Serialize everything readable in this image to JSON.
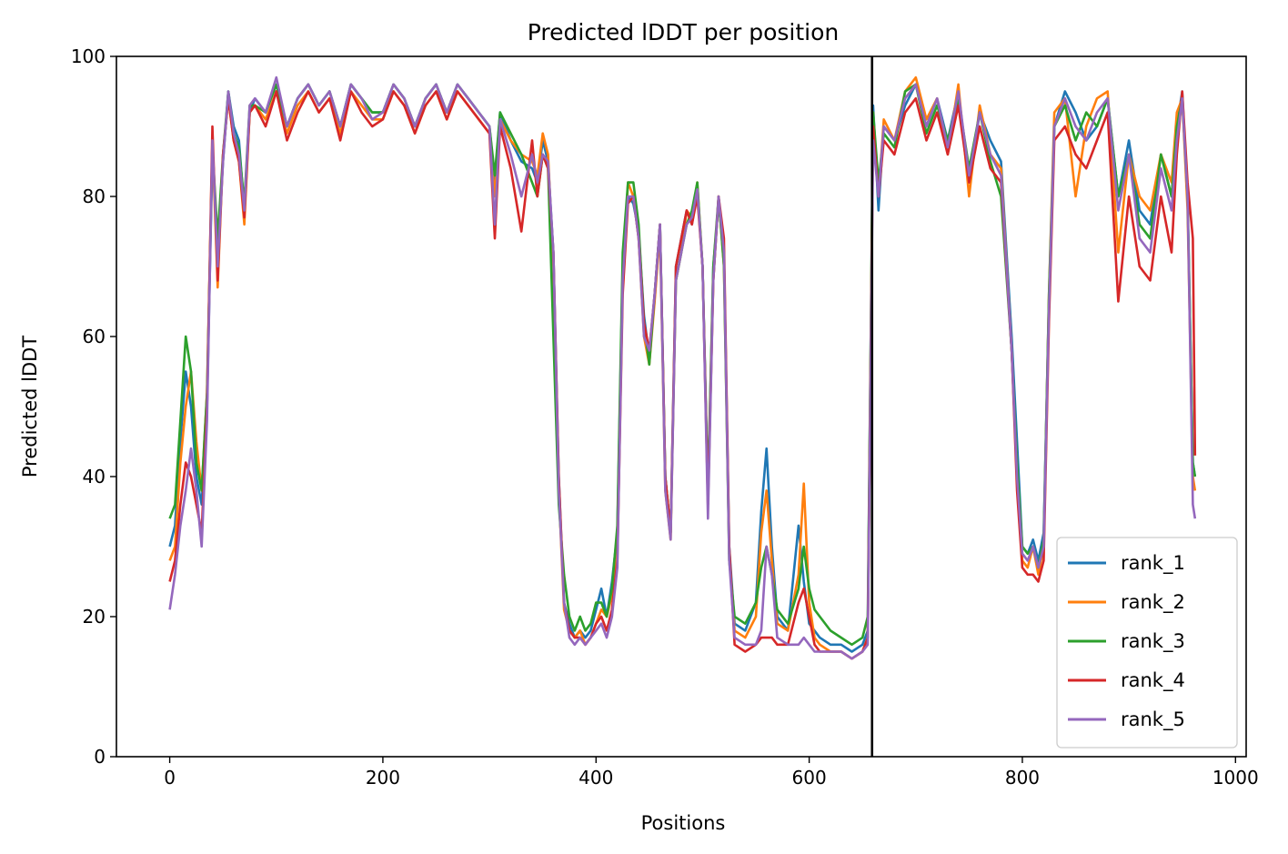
{
  "chart_data": {
    "type": "line",
    "title": "Predicted lDDT per position",
    "xlabel": "Positions",
    "ylabel": "Predicted lDDT",
    "xlim": [
      -50,
      1010
    ],
    "ylim": [
      0,
      100
    ],
    "xticks": [
      0,
      200,
      400,
      600,
      800,
      1000
    ],
    "yticks": [
      0,
      20,
      40,
      60,
      80,
      100
    ],
    "grid": false,
    "legend_position": "bottom-right",
    "chain_break": 659,
    "colors": {
      "rank_1": "#1f77b4",
      "rank_2": "#ff7f0e",
      "rank_3": "#2ca02c",
      "rank_4": "#d62728",
      "rank_5": "#9467bd"
    },
    "x": [
      0,
      5,
      10,
      15,
      20,
      25,
      30,
      35,
      40,
      45,
      50,
      55,
      60,
      65,
      70,
      75,
      80,
      90,
      100,
      110,
      120,
      130,
      140,
      150,
      160,
      170,
      180,
      190,
      200,
      210,
      220,
      230,
      240,
      250,
      260,
      270,
      280,
      290,
      300,
      305,
      310,
      320,
      330,
      340,
      345,
      350,
      355,
      360,
      365,
      370,
      375,
      380,
      385,
      390,
      395,
      400,
      405,
      410,
      415,
      420,
      425,
      430,
      435,
      440,
      445,
      450,
      455,
      460,
      465,
      470,
      475,
      480,
      485,
      490,
      495,
      500,
      505,
      510,
      515,
      520,
      525,
      530,
      540,
      550,
      555,
      560,
      565,
      570,
      580,
      590,
      595,
      600,
      605,
      610,
      620,
      630,
      640,
      650,
      655,
      660,
      665,
      670,
      680,
      690,
      700,
      710,
      720,
      730,
      740,
      750,
      760,
      770,
      780,
      790,
      795,
      800,
      805,
      810,
      815,
      820,
      825,
      830,
      840,
      850,
      860,
      870,
      880,
      890,
      900,
      910,
      920,
      930,
      940,
      945,
      950,
      955,
      960,
      962
    ],
    "series": [
      {
        "name": "rank_1",
        "values": [
          30,
          33,
          45,
          55,
          50,
          40,
          36,
          50,
          86,
          72,
          85,
          95,
          90,
          88,
          78,
          92,
          94,
          92,
          96,
          90,
          94,
          96,
          93,
          95,
          90,
          96,
          94,
          92,
          92,
          96,
          94,
          90,
          94,
          96,
          92,
          96,
          94,
          92,
          90,
          82,
          92,
          88,
          85,
          84,
          82,
          88,
          85,
          72,
          40,
          22,
          19,
          17,
          18,
          17,
          18,
          21,
          24,
          20,
          25,
          32,
          70,
          80,
          79,
          75,
          63,
          57,
          66,
          76,
          40,
          32,
          70,
          74,
          78,
          76,
          81,
          70,
          37,
          70,
          79,
          72,
          30,
          19,
          18,
          22,
          35,
          44,
          30,
          20,
          18,
          33,
          25,
          19,
          18,
          17,
          16,
          16,
          15,
          16,
          18,
          93,
          78,
          90,
          88,
          93,
          96,
          90,
          94,
          88,
          95,
          82,
          92,
          88,
          85,
          60,
          45,
          30,
          29,
          31,
          28,
          32,
          65,
          90,
          95,
          92,
          88,
          90,
          94,
          80,
          88,
          78,
          76,
          86,
          80,
          90,
          95,
          80,
          42,
          40
        ]
      },
      {
        "name": "rank_2",
        "values": [
          28,
          30,
          42,
          50,
          55,
          45,
          38,
          52,
          88,
          67,
          86,
          94,
          88,
          85,
          76,
          92,
          93,
          91,
          95,
          89,
          93,
          95,
          92,
          94,
          89,
          95,
          93,
          91,
          91,
          95,
          93,
          89,
          93,
          95,
          91,
          95,
          93,
          91,
          89,
          80,
          91,
          88,
          86,
          85,
          83,
          89,
          86,
          70,
          38,
          21,
          18,
          17,
          18,
          16,
          17,
          19,
          21,
          20,
          23,
          30,
          68,
          82,
          80,
          74,
          60,
          56,
          65,
          75,
          38,
          31,
          68,
          72,
          78,
          77,
          82,
          70,
          36,
          68,
          80,
          70,
          29,
          18,
          17,
          20,
          32,
          38,
          28,
          19,
          18,
          26,
          39,
          22,
          17,
          16,
          15,
          15,
          14,
          15,
          17,
          92,
          80,
          91,
          88,
          95,
          97,
          91,
          94,
          86,
          96,
          80,
          93,
          86,
          84,
          58,
          40,
          28,
          27,
          30,
          26,
          30,
          66,
          92,
          94,
          80,
          90,
          94,
          95,
          72,
          86,
          80,
          78,
          86,
          82,
          92,
          94,
          78,
          40,
          38
        ]
      },
      {
        "name": "rank_3",
        "values": [
          34,
          36,
          48,
          60,
          55,
          42,
          38,
          52,
          87,
          74,
          86,
          95,
          89,
          87,
          79,
          93,
          93,
          92,
          96,
          90,
          94,
          96,
          93,
          95,
          90,
          96,
          94,
          92,
          92,
          96,
          94,
          90,
          94,
          96,
          92,
          96,
          94,
          92,
          90,
          83,
          92,
          89,
          86,
          82,
          80,
          86,
          84,
          60,
          36,
          26,
          20,
          18,
          20,
          18,
          19,
          22,
          22,
          20,
          24,
          33,
          72,
          82,
          82,
          76,
          62,
          56,
          66,
          76,
          40,
          32,
          68,
          72,
          76,
          78,
          82,
          70,
          38,
          70,
          80,
          70,
          28,
          20,
          19,
          22,
          27,
          30,
          26,
          21,
          19,
          24,
          30,
          24,
          21,
          20,
          18,
          17,
          16,
          17,
          20,
          92,
          82,
          89,
          87,
          95,
          96,
          89,
          93,
          88,
          94,
          84,
          92,
          85,
          80,
          58,
          42,
          30,
          29,
          30,
          27,
          31,
          66,
          90,
          93,
          88,
          92,
          90,
          94,
          80,
          86,
          76,
          74,
          86,
          80,
          90,
          94,
          80,
          42,
          40
        ]
      },
      {
        "name": "rank_4",
        "values": [
          25,
          28,
          36,
          42,
          40,
          36,
          32,
          50,
          90,
          68,
          86,
          94,
          88,
          85,
          77,
          92,
          93,
          90,
          95,
          88,
          92,
          95,
          92,
          94,
          88,
          95,
          92,
          90,
          91,
          95,
          93,
          89,
          93,
          95,
          91,
          95,
          93,
          91,
          89,
          74,
          90,
          84,
          75,
          88,
          80,
          86,
          84,
          72,
          40,
          22,
          18,
          17,
          17,
          16,
          17,
          19,
          20,
          18,
          21,
          28,
          66,
          79,
          80,
          74,
          62,
          58,
          66,
          76,
          40,
          32,
          70,
          74,
          78,
          76,
          80,
          70,
          36,
          68,
          80,
          74,
          30,
          16,
          15,
          16,
          17,
          17,
          17,
          16,
          16,
          22,
          24,
          20,
          16,
          15,
          15,
          15,
          14,
          15,
          17,
          90,
          80,
          88,
          86,
          92,
          94,
          88,
          92,
          86,
          93,
          82,
          90,
          84,
          82,
          58,
          38,
          27,
          26,
          26,
          25,
          28,
          62,
          88,
          90,
          86,
          84,
          88,
          92,
          65,
          80,
          70,
          68,
          80,
          72,
          86,
          95,
          82,
          74,
          43
        ]
      },
      {
        "name": "rank_5",
        "values": [
          21,
          26,
          33,
          38,
          44,
          38,
          30,
          48,
          88,
          70,
          85,
          95,
          89,
          86,
          78,
          93,
          94,
          92,
          97,
          90,
          94,
          96,
          93,
          95,
          90,
          96,
          94,
          91,
          92,
          96,
          94,
          90,
          94,
          96,
          92,
          96,
          94,
          92,
          90,
          76,
          91,
          86,
          80,
          86,
          82,
          86,
          85,
          72,
          38,
          22,
          17,
          16,
          17,
          16,
          17,
          18,
          19,
          17,
          20,
          27,
          68,
          80,
          80,
          74,
          60,
          58,
          66,
          76,
          38,
          31,
          68,
          72,
          76,
          77,
          81,
          70,
          34,
          68,
          80,
          72,
          28,
          17,
          16,
          16,
          18,
          30,
          26,
          17,
          16,
          16,
          17,
          16,
          15,
          15,
          15,
          15,
          14,
          15,
          16,
          88,
          80,
          90,
          88,
          94,
          96,
          90,
          94,
          87,
          95,
          83,
          92,
          86,
          83,
          58,
          40,
          29,
          28,
          30,
          27,
          30,
          64,
          90,
          94,
          90,
          88,
          92,
          94,
          78,
          86,
          74,
          72,
          84,
          78,
          88,
          94,
          80,
          36,
          34
        ]
      }
    ],
    "legend": [
      "rank_1",
      "rank_2",
      "rank_3",
      "rank_4",
      "rank_5"
    ]
  }
}
